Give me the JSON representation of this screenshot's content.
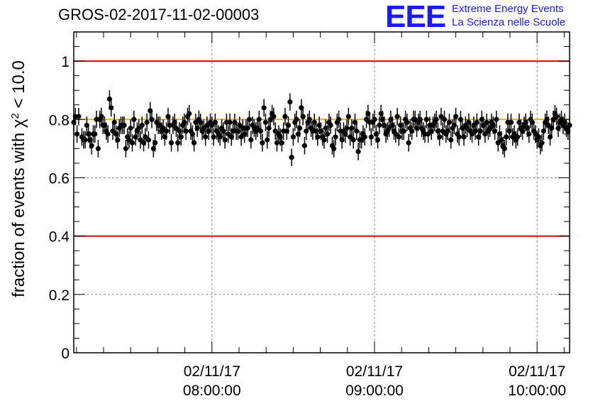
{
  "header": {
    "title": "GROS-02-2017-11-02-00003",
    "logo_text": "EEE",
    "logo_line1": "Extreme Energy Events",
    "logo_line2": "La Scienza nelle Scuole"
  },
  "colors": {
    "reference_line": "#e00000",
    "mean_line": "#f0b000",
    "points": "#000000",
    "grid": "#888888",
    "logo": "#1a1aff"
  },
  "chart_data": {
    "type": "scatter",
    "title": "GROS-02-2017-11-02-00003",
    "ylabel_prefix": "fraction of events with ",
    "ylabel_symbol": "χ",
    "ylabel_sup": "2",
    "ylabel_suffix": " < 10.0",
    "ylim": [
      0,
      1.1
    ],
    "xlim_hours": [
      7.15,
      10.2
    ],
    "yticks": [
      {
        "value": 0,
        "label": "0"
      },
      {
        "value": 0.2,
        "label": "0.2"
      },
      {
        "value": 0.4,
        "label": "0.4"
      },
      {
        "value": 0.6,
        "label": "0.6"
      },
      {
        "value": 0.8,
        "label": "0.8"
      },
      {
        "value": 1.0,
        "label": "1"
      }
    ],
    "xticks": [
      {
        "hour": 8,
        "date": "02/11/17",
        "time": "08:00:00"
      },
      {
        "hour": 9,
        "date": "02/11/17",
        "time": "09:00:00"
      },
      {
        "hour": 10,
        "date": "02/11/17",
        "time": "10:00:00"
      }
    ],
    "reference_lines": [
      0.4,
      1.0
    ],
    "mean_line": 0.8,
    "grid": true,
    "error_bar": 0.03,
    "points": [
      [
        7.15,
        0.79
      ],
      [
        7.16,
        0.81
      ],
      [
        7.17,
        0.75
      ],
      [
        7.18,
        0.81
      ],
      [
        7.2,
        0.74
      ],
      [
        7.21,
        0.73
      ],
      [
        7.22,
        0.73
      ],
      [
        7.23,
        0.78
      ],
      [
        7.24,
        0.75
      ],
      [
        7.25,
        0.73
      ],
      [
        7.26,
        0.71
      ],
      [
        7.27,
        0.75
      ],
      [
        7.28,
        0.75
      ],
      [
        7.29,
        0.8
      ],
      [
        7.3,
        0.7
      ],
      [
        7.31,
        0.8
      ],
      [
        7.32,
        0.81
      ],
      [
        7.33,
        0.78
      ],
      [
        7.34,
        0.78
      ],
      [
        7.35,
        0.76
      ],
      [
        7.36,
        0.75
      ],
      [
        7.37,
        0.87
      ],
      [
        7.38,
        0.84
      ],
      [
        7.39,
        0.76
      ],
      [
        7.4,
        0.79
      ],
      [
        7.41,
        0.75
      ],
      [
        7.42,
        0.73
      ],
      [
        7.43,
        0.77
      ],
      [
        7.44,
        0.78
      ],
      [
        7.45,
        0.78
      ],
      [
        7.46,
        0.78
      ],
      [
        7.47,
        0.7
      ],
      [
        7.48,
        0.74
      ],
      [
        7.49,
        0.73
      ],
      [
        7.5,
        0.77
      ],
      [
        7.51,
        0.72
      ],
      [
        7.52,
        0.8
      ],
      [
        7.53,
        0.74
      ],
      [
        7.54,
        0.76
      ],
      [
        7.55,
        0.77
      ],
      [
        7.56,
        0.73
      ],
      [
        7.57,
        0.78
      ],
      [
        7.58,
        0.72
      ],
      [
        7.59,
        0.74
      ],
      [
        7.6,
        0.79
      ],
      [
        7.61,
        0.73
      ],
      [
        7.62,
        0.83
      ],
      [
        7.63,
        0.8
      ],
      [
        7.64,
        0.7
      ],
      [
        7.65,
        0.72
      ],
      [
        7.66,
        0.79
      ],
      [
        7.67,
        0.78
      ],
      [
        7.68,
        0.78
      ],
      [
        7.69,
        0.76
      ],
      [
        7.7,
        0.77
      ],
      [
        7.71,
        0.74
      ],
      [
        7.72,
        0.76
      ],
      [
        7.73,
        0.81
      ],
      [
        7.74,
        0.78
      ],
      [
        7.75,
        0.72
      ],
      [
        7.76,
        0.78
      ],
      [
        7.77,
        0.79
      ],
      [
        7.78,
        0.77
      ],
      [
        7.79,
        0.72
      ],
      [
        7.8,
        0.76
      ],
      [
        7.81,
        0.74
      ],
      [
        7.82,
        0.78
      ],
      [
        7.83,
        0.79
      ],
      [
        7.84,
        0.76
      ],
      [
        7.85,
        0.81
      ],
      [
        7.86,
        0.82
      ],
      [
        7.87,
        0.76
      ],
      [
        7.88,
        0.75
      ],
      [
        7.89,
        0.72
      ],
      [
        7.9,
        0.79
      ],
      [
        7.91,
        0.77
      ],
      [
        7.92,
        0.8
      ],
      [
        7.93,
        0.79
      ],
      [
        7.94,
        0.76
      ],
      [
        7.95,
        0.77
      ],
      [
        7.96,
        0.74
      ],
      [
        7.97,
        0.78
      ],
      [
        7.98,
        0.76
      ],
      [
        7.99,
        0.79
      ],
      [
        8.0,
        0.78
      ],
      [
        8.01,
        0.74
      ],
      [
        8.02,
        0.79
      ],
      [
        8.03,
        0.76
      ],
      [
        8.04,
        0.75
      ],
      [
        8.05,
        0.74
      ],
      [
        8.06,
        0.77
      ],
      [
        8.07,
        0.76
      ],
      [
        8.08,
        0.73
      ],
      [
        8.09,
        0.79
      ],
      [
        8.1,
        0.75
      ],
      [
        8.11,
        0.79
      ],
      [
        8.12,
        0.74
      ],
      [
        8.13,
        0.76
      ],
      [
        8.14,
        0.79
      ],
      [
        8.15,
        0.76
      ],
      [
        8.16,
        0.76
      ],
      [
        8.17,
        0.78
      ],
      [
        8.18,
        0.74
      ],
      [
        8.19,
        0.77
      ],
      [
        8.2,
        0.75
      ],
      [
        8.21,
        0.77
      ],
      [
        8.22,
        0.77
      ],
      [
        8.23,
        0.8
      ],
      [
        8.24,
        0.73
      ],
      [
        8.25,
        0.78
      ],
      [
        8.26,
        0.77
      ],
      [
        8.27,
        0.76
      ],
      [
        8.28,
        0.77
      ],
      [
        8.29,
        0.8
      ],
      [
        8.3,
        0.76
      ],
      [
        8.31,
        0.72
      ],
      [
        8.32,
        0.84
      ],
      [
        8.33,
        0.79
      ],
      [
        8.34,
        0.73
      ],
      [
        8.35,
        0.77
      ],
      [
        8.36,
        0.8
      ],
      [
        8.37,
        0.82
      ],
      [
        8.38,
        0.81
      ],
      [
        8.39,
        0.76
      ],
      [
        8.4,
        0.72
      ],
      [
        8.41,
        0.75
      ],
      [
        8.42,
        0.74
      ],
      [
        8.43,
        0.72
      ],
      [
        8.44,
        0.76
      ],
      [
        8.45,
        0.81
      ],
      [
        8.46,
        0.76
      ],
      [
        8.47,
        0.78
      ],
      [
        8.48,
        0.86
      ],
      [
        8.49,
        0.67
      ],
      [
        8.5,
        0.74
      ],
      [
        8.51,
        0.79
      ],
      [
        8.52,
        0.8
      ],
      [
        8.53,
        0.75
      ],
      [
        8.54,
        0.77
      ],
      [
        8.55,
        0.84
      ],
      [
        8.56,
        0.81
      ],
      [
        8.57,
        0.71
      ],
      [
        8.58,
        0.76
      ],
      [
        8.59,
        0.79
      ],
      [
        8.6,
        0.8
      ],
      [
        8.61,
        0.77
      ],
      [
        8.62,
        0.76
      ],
      [
        8.63,
        0.79
      ],
      [
        8.64,
        0.76
      ],
      [
        8.65,
        0.74
      ],
      [
        8.66,
        0.78
      ],
      [
        8.67,
        0.76
      ],
      [
        8.68,
        0.74
      ],
      [
        8.69,
        0.73
      ],
      [
        8.7,
        0.77
      ],
      [
        8.71,
        0.75
      ],
      [
        8.72,
        0.79
      ],
      [
        8.73,
        0.78
      ],
      [
        8.74,
        0.71
      ],
      [
        8.75,
        0.7
      ],
      [
        8.76,
        0.74
      ],
      [
        8.77,
        0.79
      ],
      [
        8.78,
        0.8
      ],
      [
        8.79,
        0.76
      ],
      [
        8.8,
        0.73
      ],
      [
        8.81,
        0.76
      ],
      [
        8.82,
        0.75
      ],
      [
        8.83,
        0.77
      ],
      [
        8.84,
        0.81
      ],
      [
        8.85,
        0.74
      ],
      [
        8.86,
        0.77
      ],
      [
        8.87,
        0.73
      ],
      [
        8.88,
        0.79
      ],
      [
        8.89,
        0.76
      ],
      [
        8.9,
        0.69
      ],
      [
        8.91,
        0.73
      ],
      [
        8.92,
        0.73
      ],
      [
        8.93,
        0.75
      ],
      [
        8.94,
        0.74
      ],
      [
        8.95,
        0.8
      ],
      [
        8.96,
        0.82
      ],
      [
        8.97,
        0.79
      ],
      [
        8.98,
        0.74
      ],
      [
        8.99,
        0.79
      ],
      [
        9.0,
        0.8
      ],
      [
        9.01,
        0.75
      ],
      [
        9.02,
        0.73
      ],
      [
        9.03,
        0.78
      ],
      [
        9.04,
        0.82
      ],
      [
        9.05,
        0.8
      ],
      [
        9.06,
        0.78
      ],
      [
        9.07,
        0.75
      ],
      [
        9.08,
        0.76
      ],
      [
        9.09,
        0.77
      ],
      [
        9.1,
        0.8
      ],
      [
        9.11,
        0.78
      ],
      [
        9.12,
        0.76
      ],
      [
        9.13,
        0.75
      ],
      [
        9.14,
        0.81
      ],
      [
        9.15,
        0.74
      ],
      [
        9.16,
        0.78
      ],
      [
        9.17,
        0.76
      ],
      [
        9.18,
        0.76
      ],
      [
        9.19,
        0.8
      ],
      [
        9.2,
        0.79
      ],
      [
        9.21,
        0.72
      ],
      [
        9.22,
        0.77
      ],
      [
        9.23,
        0.76
      ],
      [
        9.24,
        0.8
      ],
      [
        9.25,
        0.8
      ],
      [
        9.26,
        0.77
      ],
      [
        9.27,
        0.79
      ],
      [
        9.28,
        0.8
      ],
      [
        9.29,
        0.77
      ],
      [
        9.3,
        0.76
      ],
      [
        9.31,
        0.75
      ],
      [
        9.32,
        0.8
      ],
      [
        9.33,
        0.75
      ],
      [
        9.34,
        0.78
      ],
      [
        9.35,
        0.76
      ],
      [
        9.36,
        0.78
      ],
      [
        9.37,
        0.79
      ],
      [
        9.38,
        0.8
      ],
      [
        9.39,
        0.76
      ],
      [
        9.4,
        0.74
      ],
      [
        9.41,
        0.81
      ],
      [
        9.42,
        0.76
      ],
      [
        9.43,
        0.8
      ],
      [
        9.44,
        0.75
      ],
      [
        9.45,
        0.76
      ],
      [
        9.46,
        0.79
      ],
      [
        9.47,
        0.73
      ],
      [
        9.48,
        0.77
      ],
      [
        9.49,
        0.78
      ],
      [
        9.5,
        0.81
      ],
      [
        9.51,
        0.75
      ],
      [
        9.52,
        0.74
      ],
      [
        9.53,
        0.8
      ],
      [
        9.54,
        0.77
      ],
      [
        9.55,
        0.74
      ],
      [
        9.56,
        0.78
      ],
      [
        9.57,
        0.77
      ],
      [
        9.58,
        0.79
      ],
      [
        9.59,
        0.76
      ],
      [
        9.6,
        0.75
      ],
      [
        9.61,
        0.78
      ],
      [
        9.62,
        0.76
      ],
      [
        9.63,
        0.79
      ],
      [
        9.64,
        0.74
      ],
      [
        9.65,
        0.76
      ],
      [
        9.66,
        0.8
      ],
      [
        9.67,
        0.78
      ],
      [
        9.68,
        0.75
      ],
      [
        9.69,
        0.79
      ],
      [
        9.7,
        0.76
      ],
      [
        9.71,
        0.77
      ],
      [
        9.72,
        0.79
      ],
      [
        9.73,
        0.78
      ],
      [
        9.74,
        0.76
      ],
      [
        9.75,
        0.8
      ],
      [
        9.76,
        0.72
      ],
      [
        9.77,
        0.75
      ],
      [
        9.78,
        0.73
      ],
      [
        9.79,
        0.71
      ],
      [
        9.8,
        0.7
      ],
      [
        9.81,
        0.74
      ],
      [
        9.82,
        0.79
      ],
      [
        9.83,
        0.76
      ],
      [
        9.84,
        0.79
      ],
      [
        9.85,
        0.74
      ],
      [
        9.86,
        0.75
      ],
      [
        9.87,
        0.73
      ],
      [
        9.88,
        0.74
      ],
      [
        9.89,
        0.79
      ],
      [
        9.9,
        0.77
      ],
      [
        9.91,
        0.76
      ],
      [
        9.92,
        0.78
      ],
      [
        9.93,
        0.79
      ],
      [
        9.94,
        0.77
      ],
      [
        9.95,
        0.75
      ],
      [
        9.96,
        0.8
      ],
      [
        9.97,
        0.79
      ],
      [
        9.98,
        0.76
      ],
      [
        9.99,
        0.75
      ],
      [
        10.0,
        0.73
      ],
      [
        10.01,
        0.74
      ],
      [
        10.02,
        0.71
      ],
      [
        10.03,
        0.72
      ],
      [
        10.04,
        0.76
      ],
      [
        10.05,
        0.79
      ],
      [
        10.06,
        0.8
      ],
      [
        10.07,
        0.78
      ],
      [
        10.08,
        0.74
      ],
      [
        10.09,
        0.77
      ],
      [
        10.1,
        0.8
      ],
      [
        10.11,
        0.82
      ],
      [
        10.12,
        0.81
      ],
      [
        10.13,
        0.77
      ],
      [
        10.14,
        0.79
      ],
      [
        10.15,
        0.8
      ],
      [
        10.16,
        0.78
      ],
      [
        10.17,
        0.79
      ],
      [
        10.18,
        0.77
      ],
      [
        10.19,
        0.76
      ],
      [
        10.2,
        0.78
      ]
    ]
  }
}
